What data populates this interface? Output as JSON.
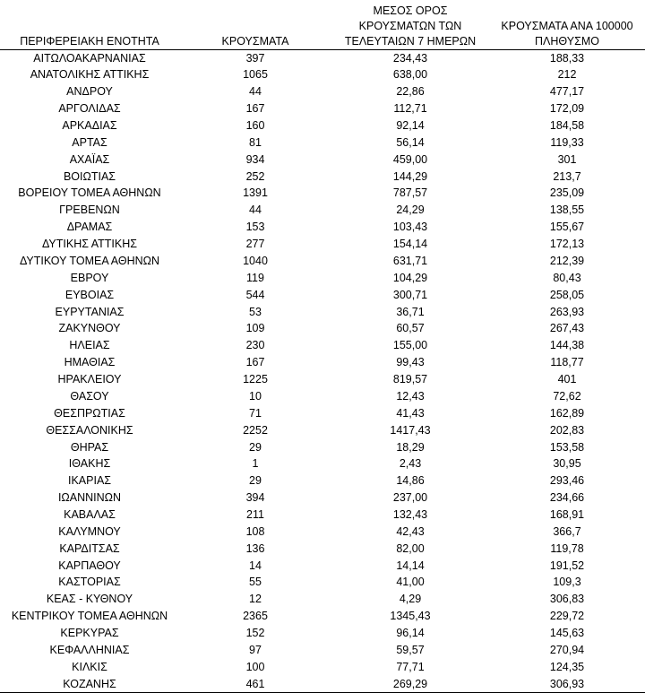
{
  "table": {
    "header": [
      [
        "ΠΕΡΙΦΕΡΕΙΑΚΗ ΕΝΟΤΗΤΑ"
      ],
      [
        "ΚΡΟΥΣΜΑΤΑ"
      ],
      [
        "ΜΕΣΟΣ ΟΡΟΣ",
        "ΚΡΟΥΣΜΑΤΩΝ ΤΩΝ",
        "ΤΕΛΕΥΤΑΙΩΝ 7 ΗΜΕΡΩΝ"
      ],
      [
        "ΚΡΟΥΣΜΑΤΑ ΑΝΑ 100000",
        "ΠΛΗΘΥΣΜΟ"
      ]
    ],
    "rows": [
      [
        "ΑΙΤΩΛΟΑΚΑΡΝΑΝΙΑΣ",
        "397",
        "234,43",
        "188,33"
      ],
      [
        "ΑΝΑΤΟΛΙΚΗΣ ΑΤΤΙΚΗΣ",
        "1065",
        "638,00",
        "212"
      ],
      [
        "ΑΝΔΡΟΥ",
        "44",
        "22,86",
        "477,17"
      ],
      [
        "ΑΡΓΟΛΙΔΑΣ",
        "167",
        "112,71",
        "172,09"
      ],
      [
        "ΑΡΚΑΔΙΑΣ",
        "160",
        "92,14",
        "184,58"
      ],
      [
        "ΑΡΤΑΣ",
        "81",
        "56,14",
        "119,33"
      ],
      [
        "ΑΧΑΪΑΣ",
        "934",
        "459,00",
        "301"
      ],
      [
        "ΒΟΙΩΤΙΑΣ",
        "252",
        "144,29",
        "213,7"
      ],
      [
        "ΒΟΡΕΙΟΥ ΤΟΜΕΑ ΑΘΗΝΩΝ",
        "1391",
        "787,57",
        "235,09"
      ],
      [
        "ΓΡΕΒΕΝΩΝ",
        "44",
        "24,29",
        "138,55"
      ],
      [
        "ΔΡΑΜΑΣ",
        "153",
        "103,43",
        "155,67"
      ],
      [
        "ΔΥΤΙΚΗΣ ΑΤΤΙΚΗΣ",
        "277",
        "154,14",
        "172,13"
      ],
      [
        "ΔΥΤΙΚΟΥ ΤΟΜΕΑ ΑΘΗΝΩΝ",
        "1040",
        "631,71",
        "212,39"
      ],
      [
        "ΕΒΡΟΥ",
        "119",
        "104,29",
        "80,43"
      ],
      [
        "ΕΥΒΟΙΑΣ",
        "544",
        "300,71",
        "258,05"
      ],
      [
        "ΕΥΡΥΤΑΝΙΑΣ",
        "53",
        "36,71",
        "263,93"
      ],
      [
        "ΖΑΚΥΝΘΟΥ",
        "109",
        "60,57",
        "267,43"
      ],
      [
        "ΗΛΕΙΑΣ",
        "230",
        "155,00",
        "144,38"
      ],
      [
        "ΗΜΑΘΙΑΣ",
        "167",
        "99,43",
        "118,77"
      ],
      [
        "ΗΡΑΚΛΕΙΟΥ",
        "1225",
        "819,57",
        "401"
      ],
      [
        "ΘΑΣΟΥ",
        "10",
        "12,43",
        "72,62"
      ],
      [
        "ΘΕΣΠΡΩΤΙΑΣ",
        "71",
        "41,43",
        "162,89"
      ],
      [
        "ΘΕΣΣΑΛΟΝΙΚΗΣ",
        "2252",
        "1417,43",
        "202,83"
      ],
      [
        "ΘΗΡΑΣ",
        "29",
        "18,29",
        "153,58"
      ],
      [
        "ΙΘΑΚΗΣ",
        "1",
        "2,43",
        "30,95"
      ],
      [
        "ΙΚΑΡΙΑΣ",
        "29",
        "14,86",
        "293,46"
      ],
      [
        "ΙΩΑΝΝΙΝΩΝ",
        "394",
        "237,00",
        "234,66"
      ],
      [
        "ΚΑΒΑΛΑΣ",
        "211",
        "132,43",
        "168,91"
      ],
      [
        "ΚΑΛΥΜΝΟΥ",
        "108",
        "42,43",
        "366,7"
      ],
      [
        "ΚΑΡΔΙΤΣΑΣ",
        "136",
        "82,00",
        "119,78"
      ],
      [
        "ΚΑΡΠΑΘΟΥ",
        "14",
        "14,14",
        "191,52"
      ],
      [
        "ΚΑΣΤΟΡΙΑΣ",
        "55",
        "41,00",
        "109,3"
      ],
      [
        "ΚΕΑΣ - ΚΥΘΝΟΥ",
        "12",
        "4,29",
        "306,83"
      ],
      [
        "ΚΕΝΤΡΙΚΟΥ ΤΟΜΕΑ ΑΘΗΝΩΝ",
        "2365",
        "1345,43",
        "229,72"
      ],
      [
        "ΚΕΡΚΥΡΑΣ",
        "152",
        "96,14",
        "145,63"
      ],
      [
        "ΚΕΦΑΛΛΗΝΙΑΣ",
        "97",
        "59,57",
        "270,94"
      ],
      [
        "ΚΙΛΚΙΣ",
        "100",
        "77,71",
        "124,35"
      ],
      [
        "ΚΟΖΑΝΗΣ",
        "461",
        "269,29",
        "306,93"
      ]
    ]
  }
}
